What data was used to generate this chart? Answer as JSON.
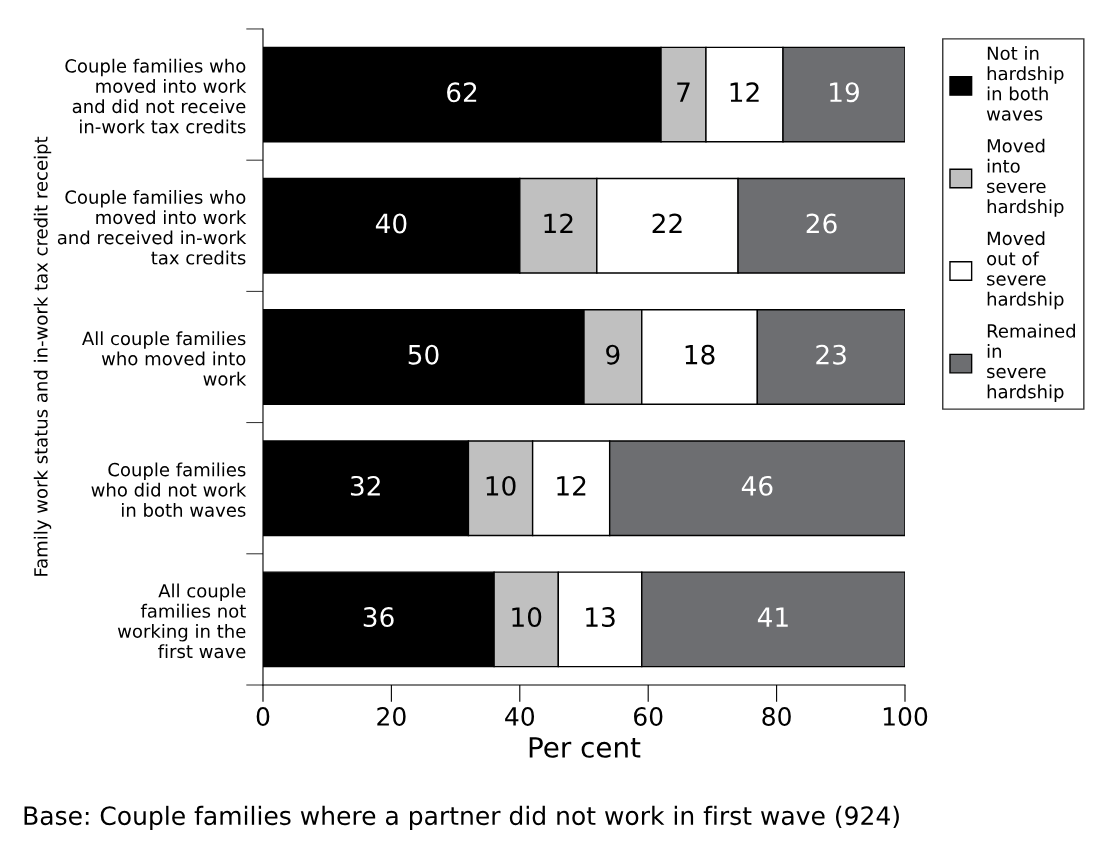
{
  "chart_data": {
    "type": "bar",
    "orientation": "horizontal",
    "stacked": true,
    "categories": [
      "Couple families who\nmoved into work\nand did not receive\nin-work tax credits",
      "Couple families who\nmoved into work\nand received in-work\ntax credits",
      "All couple families\nwho moved into\nwork",
      "Couple families\nwho did not work\nin both waves",
      "All couple\nfamilies not\nworking in the\nfirst wave"
    ],
    "series": [
      {
        "name": "Not in\nhardship\nin both\nwaves",
        "color": "#000000",
        "values": [
          62,
          40,
          50,
          32,
          36
        ]
      },
      {
        "name": "Moved\ninto\nsevere\nhardship",
        "color": "#c0c0c0",
        "values": [
          7,
          12,
          9,
          10,
          10
        ]
      },
      {
        "name": "Moved\nout of\nsevere\nhardship",
        "color": "#ffffff",
        "values": [
          12,
          22,
          18,
          12,
          13
        ]
      },
      {
        "name": "Remained\nin\nsevere\nhardship",
        "color": "#6d6e71",
        "values": [
          19,
          26,
          23,
          46,
          41
        ]
      }
    ],
    "xlim": [
      0,
      100
    ],
    "xticks": [
      0,
      20,
      40,
      60,
      80,
      100
    ],
    "xlabel": "Per cent",
    "ylabel": "Family work status and in-work tax credit receipt",
    "data_labels": true,
    "legend": "top right",
    "grid": false,
    "annotations": [
      "Base: Couple families where a partner did not work in first wave (924)"
    ]
  }
}
